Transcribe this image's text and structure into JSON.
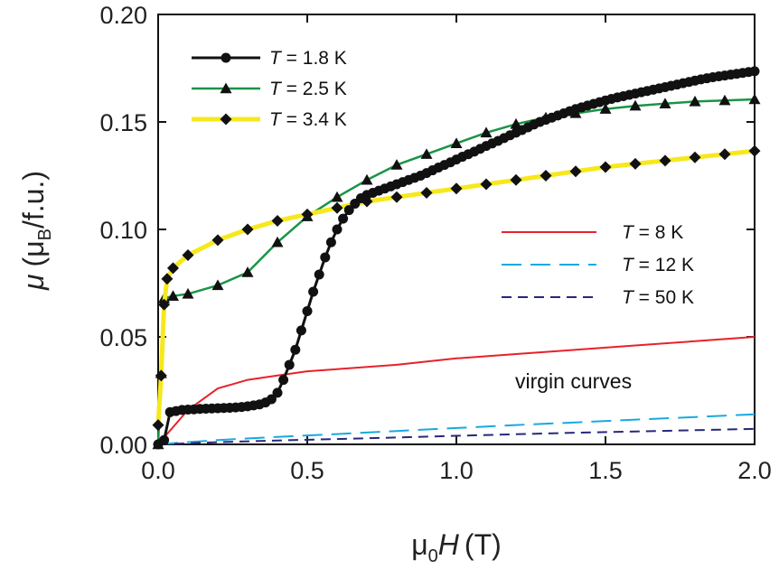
{
  "chart_data": {
    "type": "line",
    "xlabel_prefix": "μ",
    "xlabel_sub": "0",
    "xlabel_var": "H",
    "xlabel_unit": "(T)",
    "ylabel_var": "μ",
    "ylabel_open": "(μ",
    "ylabel_sub": "B",
    "ylabel_unit": "/f.u.)",
    "xlim": [
      0,
      2.0
    ],
    "ylim": [
      0,
      0.2
    ],
    "x_ticks": [
      0.0,
      0.5,
      1.0,
      1.5,
      2.0
    ],
    "x_tick_labels": [
      "0.0",
      "0.5",
      "1.0",
      "1.5",
      "2.0"
    ],
    "y_ticks": [
      0.0,
      0.05,
      0.1,
      0.15,
      0.2
    ],
    "y_tick_labels": [
      "0.00",
      "0.05",
      "0.10",
      "0.15",
      "0.20"
    ],
    "annotation": "virgin curves",
    "series": [
      {
        "id": "t18",
        "legend_var": "T",
        "legend_rest": " = 1.8 K",
        "color": "#111111",
        "line_width": 3,
        "marker": "circle",
        "x": [
          0,
          0.02,
          0.04,
          0.06,
          0.08,
          0.1,
          0.12,
          0.14,
          0.16,
          0.18,
          0.2,
          0.22,
          0.24,
          0.26,
          0.28,
          0.3,
          0.32,
          0.34,
          0.36,
          0.38,
          0.4,
          0.42,
          0.44,
          0.46,
          0.48,
          0.5,
          0.52,
          0.54,
          0.56,
          0.58,
          0.6,
          0.62,
          0.64,
          0.66,
          0.68,
          0.7,
          0.72,
          0.74,
          0.76,
          0.78,
          0.8,
          0.82,
          0.84,
          0.86,
          0.88,
          0.9,
          0.92,
          0.94,
          0.96,
          0.98,
          1.0,
          1.02,
          1.04,
          1.06,
          1.08,
          1.1,
          1.12,
          1.14,
          1.16,
          1.18,
          1.2,
          1.22,
          1.24,
          1.26,
          1.28,
          1.3,
          1.32,
          1.34,
          1.36,
          1.38,
          1.4,
          1.42,
          1.44,
          1.46,
          1.48,
          1.5,
          1.52,
          1.54,
          1.56,
          1.58,
          1.6,
          1.62,
          1.64,
          1.66,
          1.68,
          1.7,
          1.72,
          1.74,
          1.76,
          1.78,
          1.8,
          1.82,
          1.84,
          1.86,
          1.88,
          1.9,
          1.92,
          1.94,
          1.96,
          1.98,
          2.0
        ],
        "y": [
          0,
          0.002,
          0.015,
          0.0155,
          0.016,
          0.0162,
          0.0163,
          0.0165,
          0.0166,
          0.0167,
          0.0168,
          0.0169,
          0.017,
          0.0172,
          0.0174,
          0.0177,
          0.0181,
          0.0186,
          0.0195,
          0.021,
          0.024,
          0.03,
          0.037,
          0.044,
          0.053,
          0.062,
          0.071,
          0.079,
          0.087,
          0.094,
          0.1,
          0.105,
          0.109,
          0.112,
          0.1145,
          0.116,
          0.117,
          0.118,
          0.119,
          0.12,
          0.121,
          0.122,
          0.123,
          0.124,
          0.125,
          0.1262,
          0.1275,
          0.1288,
          0.13,
          0.1312,
          0.1325,
          0.1338,
          0.135,
          0.1362,
          0.1375,
          0.1388,
          0.14,
          0.1412,
          0.1425,
          0.1438,
          0.145,
          0.1462,
          0.1475,
          0.1488,
          0.15,
          0.151,
          0.152,
          0.153,
          0.154,
          0.155,
          0.156,
          0.1568,
          0.1576,
          0.1584,
          0.1592,
          0.16,
          0.1607,
          0.1614,
          0.162,
          0.1626,
          0.1632,
          0.1638,
          0.1644,
          0.165,
          0.1656,
          0.1662,
          0.1668,
          0.1674,
          0.168,
          0.1686,
          0.1692,
          0.1698,
          0.1703,
          0.1708,
          0.1712,
          0.1716,
          0.172,
          0.1724,
          0.1728,
          0.1732,
          0.1736
        ]
      },
      {
        "id": "t25",
        "legend_var": "T",
        "legend_rest": " = 2.5 K",
        "color": "#1a9447",
        "line_width": 2.5,
        "marker": "triangle",
        "x": [
          0,
          0.01,
          0.02,
          0.05,
          0.1,
          0.2,
          0.3,
          0.4,
          0.5,
          0.6,
          0.7,
          0.8,
          0.9,
          1.0,
          1.1,
          1.2,
          1.3,
          1.4,
          1.5,
          1.6,
          1.7,
          1.8,
          1.9,
          2.0
        ],
        "y": [
          0,
          0.033,
          0.068,
          0.069,
          0.07,
          0.074,
          0.08,
          0.094,
          0.106,
          0.115,
          0.123,
          0.13,
          0.135,
          0.14,
          0.145,
          0.149,
          0.152,
          0.154,
          0.156,
          0.1575,
          0.1585,
          0.1595,
          0.16,
          0.1605
        ]
      },
      {
        "id": "t34",
        "legend_var": "T",
        "legend_rest": " = 3.4 K",
        "color": "#f6e81c",
        "line_width": 5,
        "marker": "diamond",
        "x": [
          0,
          0.01,
          0.02,
          0.03,
          0.05,
          0.1,
          0.2,
          0.3,
          0.4,
          0.5,
          0.6,
          0.7,
          0.8,
          0.9,
          1.0,
          1.1,
          1.2,
          1.3,
          1.4,
          1.5,
          1.6,
          1.7,
          1.8,
          1.9,
          2.0
        ],
        "y": [
          0.009,
          0.032,
          0.065,
          0.077,
          0.082,
          0.088,
          0.095,
          0.1,
          0.104,
          0.107,
          0.11,
          0.113,
          0.115,
          0.117,
          0.119,
          0.121,
          0.123,
          0.125,
          0.127,
          0.129,
          0.1305,
          0.132,
          0.1335,
          0.135,
          0.1365
        ]
      },
      {
        "id": "t8",
        "legend_var": "T",
        "legend_rest": " = 8 K",
        "color": "#e8212b",
        "line_width": 2,
        "dash": "",
        "marker": "none",
        "x": [
          0,
          0.1,
          0.2,
          0.3,
          0.4,
          0.5,
          0.6,
          0.8,
          1.0,
          1.2,
          1.4,
          1.6,
          1.8,
          2.0
        ],
        "y": [
          0,
          0.016,
          0.026,
          0.03,
          0.032,
          0.034,
          0.035,
          0.037,
          0.04,
          0.042,
          0.044,
          0.046,
          0.048,
          0.05
        ]
      },
      {
        "id": "t12",
        "legend_var": "T",
        "legend_rest": " = 12 K",
        "color": "#19a9e1",
        "line_width": 2,
        "dash": "22,10",
        "marker": "none",
        "x": [
          0,
          0.2,
          0.4,
          0.6,
          0.8,
          1.0,
          1.2,
          1.4,
          1.6,
          1.8,
          2.0
        ],
        "y": [
          0,
          0.002,
          0.0035,
          0.0048,
          0.0062,
          0.0076,
          0.009,
          0.0102,
          0.0115,
          0.0127,
          0.014
        ]
      },
      {
        "id": "t50",
        "legend_var": "T",
        "legend_rest": " = 50 K",
        "color": "#27287a",
        "line_width": 2,
        "dash": "11,7",
        "marker": "none",
        "x": [
          0,
          0.2,
          0.4,
          0.6,
          0.8,
          1.0,
          1.2,
          1.4,
          1.6,
          1.8,
          2.0
        ],
        "y": [
          0,
          0.001,
          0.0018,
          0.0025,
          0.0032,
          0.004,
          0.0047,
          0.0054,
          0.006,
          0.0066,
          0.0072
        ]
      }
    ]
  }
}
